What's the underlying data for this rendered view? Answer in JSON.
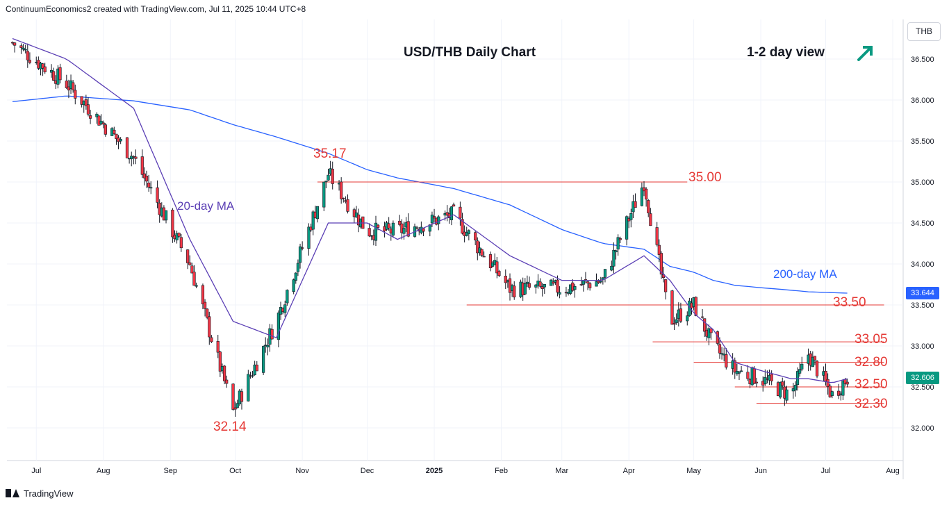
{
  "header": {
    "attribution": "ContinuumEconomics2 created with TradingView.com, Jul 11, 2025 10:44 UTC+8"
  },
  "footer": {
    "brand": "TradingView"
  },
  "colors": {
    "up": "#089981",
    "down": "#f23645",
    "ma20": "#5b3fb5",
    "ma200": "#2962ff",
    "levels": "#e53935",
    "axis_text": "#131722"
  },
  "chart_data": {
    "type": "candlestick",
    "title": "USD/THB Daily Chart",
    "view_label": "1-2 day view",
    "view_direction": "up-arrow",
    "currency": "THB",
    "y_axis": {
      "min": 31.6,
      "max": 36.85,
      "ticks": [
        "32.000",
        "32.500",
        "33.000",
        "33.500",
        "34.000",
        "34.500",
        "35.000",
        "35.500",
        "36.000",
        "36.500"
      ]
    },
    "x_ticks": [
      "Jul",
      "Aug",
      "Sep",
      "Oct",
      "Nov",
      "Dec",
      "2025",
      "Feb",
      "Mar",
      "Apr",
      "May",
      "Jun",
      "Jul",
      "Aug"
    ],
    "price_tags": [
      {
        "label": "33.644",
        "value": 33.644,
        "color": "#2962ff"
      },
      {
        "label": "32.606",
        "value": 32.606,
        "color": "#089981"
      }
    ],
    "moving_averages": [
      {
        "name": "20-day MA",
        "label": "20-day MA",
        "color": "#5b3fb5"
      },
      {
        "name": "200-day MA",
        "label": "200-day MA",
        "color": "#2962ff"
      }
    ],
    "levels": [
      {
        "label": "35.17",
        "value": 35.17,
        "kind": "peak"
      },
      {
        "label": "35.00",
        "value": 35.0
      },
      {
        "label": "33.50",
        "value": 33.5
      },
      {
        "label": "33.05",
        "value": 33.05
      },
      {
        "label": "32.80",
        "value": 32.8
      },
      {
        "label": "32.50",
        "value": 32.5
      },
      {
        "label": "32.30",
        "value": 32.3
      },
      {
        "label": "32.14",
        "value": 32.14,
        "kind": "trough"
      }
    ],
    "series": [
      {
        "name": "close",
        "dates": [
          "2024-06-20",
          "2024-07-15",
          "2024-08-15",
          "2024-09-10",
          "2024-09-30",
          "2024-10-20",
          "2024-11-13",
          "2024-12-01",
          "2024-12-15",
          "2025-01-10",
          "2025-02-05",
          "2025-03-01",
          "2025-03-20",
          "2025-04-08",
          "2025-04-20",
          "2025-05-01",
          "2025-05-10",
          "2025-05-20",
          "2025-06-01",
          "2025-06-15",
          "2025-06-23",
          "2025-07-04",
          "2025-07-11"
        ],
        "values": [
          36.7,
          36.2,
          35.3,
          34.0,
          32.2,
          33.3,
          35.1,
          34.4,
          34.4,
          34.6,
          33.7,
          33.7,
          33.8,
          35.0,
          33.3,
          33.5,
          33.0,
          32.7,
          32.6,
          32.4,
          32.9,
          32.4,
          32.61
        ]
      },
      {
        "name": "20-day MA",
        "values": [
          36.75,
          36.5,
          35.9,
          34.3,
          33.3,
          33.1,
          34.5,
          34.5,
          34.3,
          34.6,
          34.1,
          33.8,
          33.8,
          34.1,
          33.8,
          33.4,
          33.2,
          32.8,
          32.7,
          32.6,
          32.6,
          32.55,
          32.6
        ]
      },
      {
        "name": "200-day MA",
        "values": [
          35.98,
          36.05,
          35.99,
          35.88,
          35.7,
          35.55,
          35.35,
          35.15,
          35.05,
          34.92,
          34.72,
          34.42,
          34.25,
          34.18,
          33.97,
          33.9,
          33.8,
          33.74,
          33.71,
          33.68,
          33.66,
          33.65,
          33.644
        ]
      }
    ]
  }
}
